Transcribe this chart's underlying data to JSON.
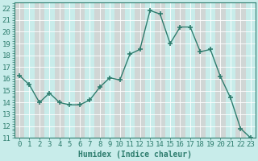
{
  "x": [
    0,
    1,
    2,
    3,
    4,
    5,
    6,
    7,
    8,
    9,
    10,
    11,
    12,
    13,
    14,
    15,
    16,
    17,
    18,
    19,
    20,
    21,
    22,
    23
  ],
  "y": [
    16.3,
    15.5,
    14.0,
    14.8,
    14.0,
    13.8,
    13.8,
    14.2,
    15.3,
    16.1,
    15.9,
    18.1,
    18.5,
    21.8,
    21.5,
    19.0,
    20.4,
    20.4,
    18.3,
    18.5,
    16.2,
    14.4,
    11.8,
    11.0
  ],
  "line_color": "#2e7d6e",
  "marker": "+",
  "markersize": 4,
  "markeredgewidth": 1.2,
  "linewidth": 1.0,
  "bg_color": "#c8ecea",
  "plot_bg_color": "#c8ecea",
  "grid_color_major": "#e8c8c8",
  "grid_color_minor": "#ffffff",
  "xlabel": "Humidex (Indice chaleur)",
  "ylim": [
    11,
    22.5
  ],
  "xlim": [
    -0.5,
    23.5
  ],
  "yticks": [
    11,
    12,
    13,
    14,
    15,
    16,
    17,
    18,
    19,
    20,
    21,
    22
  ],
  "xticks": [
    0,
    1,
    2,
    3,
    4,
    5,
    6,
    7,
    8,
    9,
    10,
    11,
    12,
    13,
    14,
    15,
    16,
    17,
    18,
    19,
    20,
    21,
    22,
    23
  ],
  "xlabel_fontsize": 7,
  "tick_fontsize": 6.5
}
